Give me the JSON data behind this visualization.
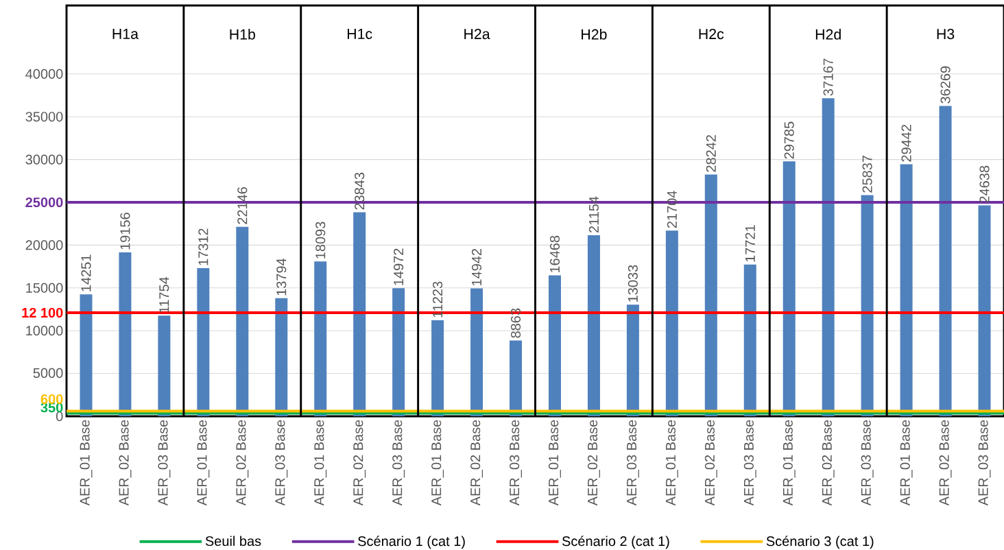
{
  "chart_data": {
    "type": "bar",
    "categories": [
      "AER_01 Base",
      "AER_02 Base",
      "AER_03 Base",
      "AER_01 Base",
      "AER_02 Base",
      "AER_03 Base",
      "AER_01 Base",
      "AER_02 Base",
      "AER_03 Base",
      "AER_01 Base",
      "AER_02 Base",
      "AER_03 Base",
      "AER_01 Base",
      "AER_02 Base",
      "AER_03 Base",
      "AER_01 Base",
      "AER_02 Base",
      "AER_03 Base",
      "AER_01 Base",
      "AER_02 Base",
      "AER_03 Base",
      "AER_01 Base",
      "AER_02 Base",
      "AER_03 Base"
    ],
    "values": [
      14251,
      19156,
      11754,
      17312,
      22146,
      13794,
      18093,
      23843,
      14972,
      11223,
      14942,
      8863,
      16468,
      21154,
      13033,
      21704,
      28242,
      17721,
      29785,
      37167,
      25837,
      29442,
      36269,
      24638
    ],
    "color": "#4f81bd",
    "data_labels": true,
    "ylim": [
      0,
      48000
    ],
    "yticks": [
      0,
      {
        "value": 350,
        "label": "350"
      },
      {
        "value": 600,
        "label": "600"
      },
      5000,
      10000,
      {
        "value": 12100,
        "label": "12 100"
      },
      15000,
      20000,
      25000,
      30000,
      35000,
      40000
    ],
    "grid": "y",
    "legend": "bottom",
    "ref_lines": [
      {
        "axis": "y",
        "value": 350,
        "label": "Seuil bas",
        "color": "#00b050"
      },
      {
        "axis": "y",
        "value": 25000,
        "label": "Scénario 1 (cat 1)",
        "color": "#7030a0"
      },
      {
        "axis": "y",
        "value": 12100,
        "label": "Scénario 2 (cat 1)",
        "color": "#ff0000"
      },
      {
        "axis": "y",
        "value": 600,
        "label": "Scénario 3 (cat 1)",
        "color": "#ffc000"
      }
    ],
    "annotations": [
      "H1a",
      "H1b",
      "H1c",
      "H2a",
      "H2b",
      "H2c",
      "H2d",
      "H3"
    ]
  }
}
